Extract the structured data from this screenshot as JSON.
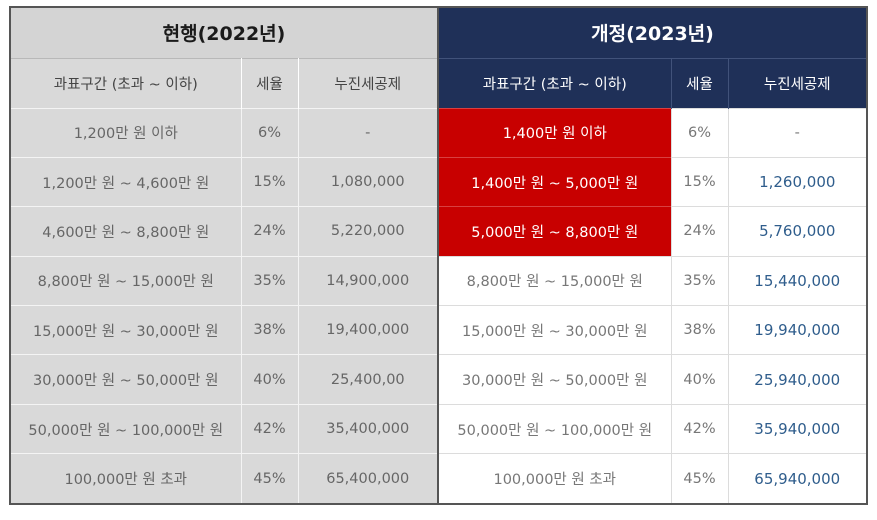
{
  "current": {
    "title": "현행(2022년)",
    "headers": [
      "과표구간 (초과 ~ 이하)",
      "세율",
      "누진세공제"
    ]
  },
  "revised": {
    "title": "개정(2023년)",
    "headers": [
      "과표구간 (초과 ~ 이하)",
      "세율",
      "누진세공제"
    ]
  },
  "highlight_color": "#c80000",
  "header_color": "#1f3058",
  "rows": [
    {
      "old_bracket": "1,200만 원 이하",
      "old_rate": "6%",
      "old_deduct": "-",
      "new_bracket": "1,400만 원 이하",
      "new_rate": "6%",
      "new_deduct": "-"
    },
    {
      "old_bracket": "1,200만 원 ~ 4,600만 원",
      "old_rate": "15%",
      "old_deduct": "1,080,000",
      "new_bracket": "1,400만 원 ~ 5,000만 원",
      "new_rate": "15%",
      "new_deduct": "1,260,000"
    },
    {
      "old_bracket": "4,600만 원 ~ 8,800만 원",
      "old_rate": "24%",
      "old_deduct": "5,220,000",
      "new_bracket": "5,000만 원 ~ 8,800만 원",
      "new_rate": "24%",
      "new_deduct": "5,760,000"
    },
    {
      "old_bracket": "8,800만 원 ~ 15,000만 원",
      "old_rate": "35%",
      "old_deduct": "14,900,000",
      "new_bracket": "8,800만 원 ~ 15,000만 원",
      "new_rate": "35%",
      "new_deduct": "15,440,000"
    },
    {
      "old_bracket": "15,000만 원 ~ 30,000만 원",
      "old_rate": "38%",
      "old_deduct": "19,400,000",
      "new_bracket": "15,000만 원 ~ 30,000만 원",
      "new_rate": "38%",
      "new_deduct": "19,940,000"
    },
    {
      "old_bracket": "30,000만 원 ~ 50,000만 원",
      "old_rate": "40%",
      "old_deduct": "25,400,00",
      "new_bracket": "30,000만 원 ~ 50,000만 원",
      "new_rate": "40%",
      "new_deduct": "25,940,000"
    },
    {
      "old_bracket": "50,000만 원 ~ 100,000만 원",
      "old_rate": "42%",
      "old_deduct": "35,400,000",
      "new_bracket": "50,000만 원 ~ 100,000만 원",
      "new_rate": "42%",
      "new_deduct": "35,940,000"
    },
    {
      "old_bracket": "100,000만 원 초과",
      "old_rate": "45%",
      "old_deduct": "65,400,000",
      "new_bracket": "100,000만 원 초과",
      "new_rate": "45%",
      "new_deduct": "65,940,000"
    }
  ]
}
